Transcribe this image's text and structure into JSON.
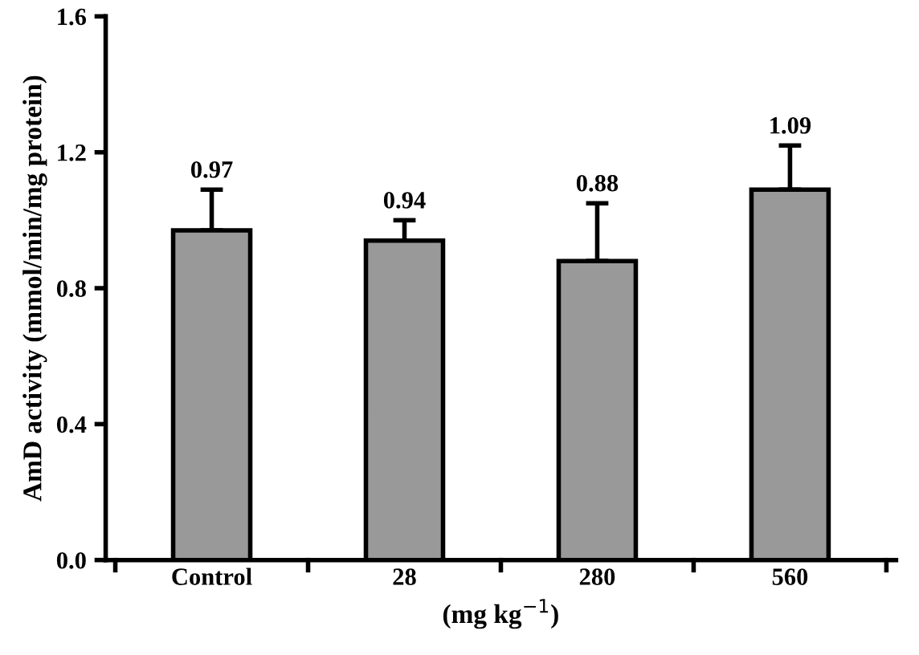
{
  "chart_data": {
    "type": "bar",
    "xlabel": "(mg kg$^{−1}$)",
    "ylabel": "AmD activity (mmol/min/mg protein)",
    "categories": [
      "Control",
      "28",
      "280",
      "560"
    ],
    "values": [
      0.97,
      0.94,
      0.88,
      1.09
    ],
    "errors": [
      [
        0.97,
        1.09
      ],
      [
        0.94,
        1.0
      ],
      [
        0.88,
        1.05
      ],
      [
        1.09,
        1.22
      ]
    ],
    "color": "#999999",
    "data_labels": true,
    "ylim": [
      0,
      1.6
    ],
    "yticks": [
      {
        "value": 0,
        "label": "0.0"
      },
      0.4,
      0.8,
      1.2,
      1.6
    ],
    "grid": false,
    "legend": false
  }
}
